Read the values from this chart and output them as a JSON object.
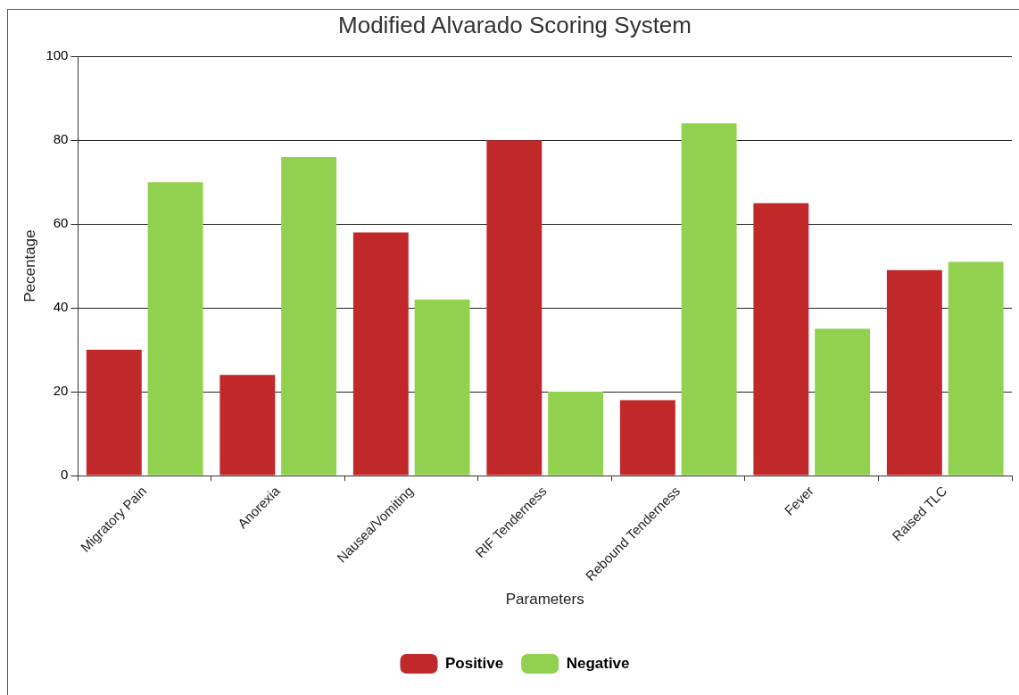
{
  "chart_data": {
    "type": "bar",
    "title": "Modified Alvarado Scoring System",
    "xlabel": "Parameters",
    "ylabel": "Pecentage",
    "categories": [
      "Migratory Pain",
      "Anorexia",
      "Nausea/Vomiting",
      "RIF Tenderness",
      "Rebound Tenderness",
      "Fever",
      "Raised TLC"
    ],
    "series": [
      {
        "name": "Positive",
        "color": "#c0282a",
        "values": [
          30,
          24,
          58,
          80,
          18,
          65,
          49
        ]
      },
      {
        "name": "Negative",
        "color": "#92d050",
        "values": [
          70,
          76,
          42,
          20,
          84,
          35,
          51
        ]
      }
    ],
    "ylim": [
      0,
      100
    ],
    "yticks": [
      0,
      20,
      40,
      60,
      80,
      100
    ],
    "grid": "y",
    "legend": "bottom"
  }
}
